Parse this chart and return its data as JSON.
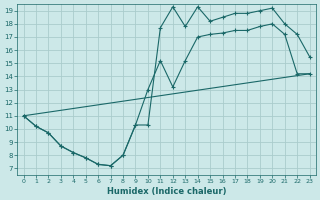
{
  "xlabel": "Humidex (Indice chaleur)",
  "bg_color": "#cce8e8",
  "line_color": "#1a6868",
  "grid_color": "#aacccc",
  "xlim": [
    -0.5,
    23.5
  ],
  "ylim": [
    6.5,
    19.5
  ],
  "yticks": [
    7,
    8,
    9,
    10,
    11,
    12,
    13,
    14,
    15,
    16,
    17,
    18,
    19
  ],
  "xticks": [
    0,
    1,
    2,
    3,
    4,
    5,
    6,
    7,
    8,
    9,
    10,
    11,
    12,
    13,
    14,
    15,
    16,
    17,
    18,
    19,
    20,
    21,
    22,
    23
  ],
  "series1_x": [
    0,
    1,
    2,
    3,
    4,
    5,
    6,
    7,
    8,
    9,
    10,
    11,
    12,
    13,
    14,
    15,
    16,
    17,
    18,
    19,
    20,
    21,
    22,
    23
  ],
  "series1_y": [
    11.0,
    10.2,
    9.7,
    8.7,
    8.2,
    7.8,
    7.3,
    7.2,
    8.0,
    10.3,
    10.3,
    17.7,
    19.3,
    17.8,
    19.3,
    18.2,
    18.5,
    18.8,
    18.8,
    19.0,
    19.2,
    18.0,
    17.2,
    15.5
  ],
  "series2_x": [
    0,
    1,
    2,
    3,
    4,
    5,
    6,
    7,
    8,
    9,
    10,
    11,
    12,
    13,
    14,
    15,
    16,
    17,
    18,
    19,
    20,
    21,
    22,
    23
  ],
  "series2_y": [
    11.0,
    10.2,
    9.7,
    8.7,
    8.2,
    7.8,
    7.3,
    7.2,
    8.0,
    10.3,
    13.0,
    15.2,
    13.2,
    15.2,
    17.0,
    17.2,
    17.3,
    17.5,
    17.5,
    17.8,
    18.0,
    17.2,
    14.2,
    14.2
  ],
  "series3_x": [
    0,
    23
  ],
  "series3_y": [
    11.0,
    14.2
  ]
}
